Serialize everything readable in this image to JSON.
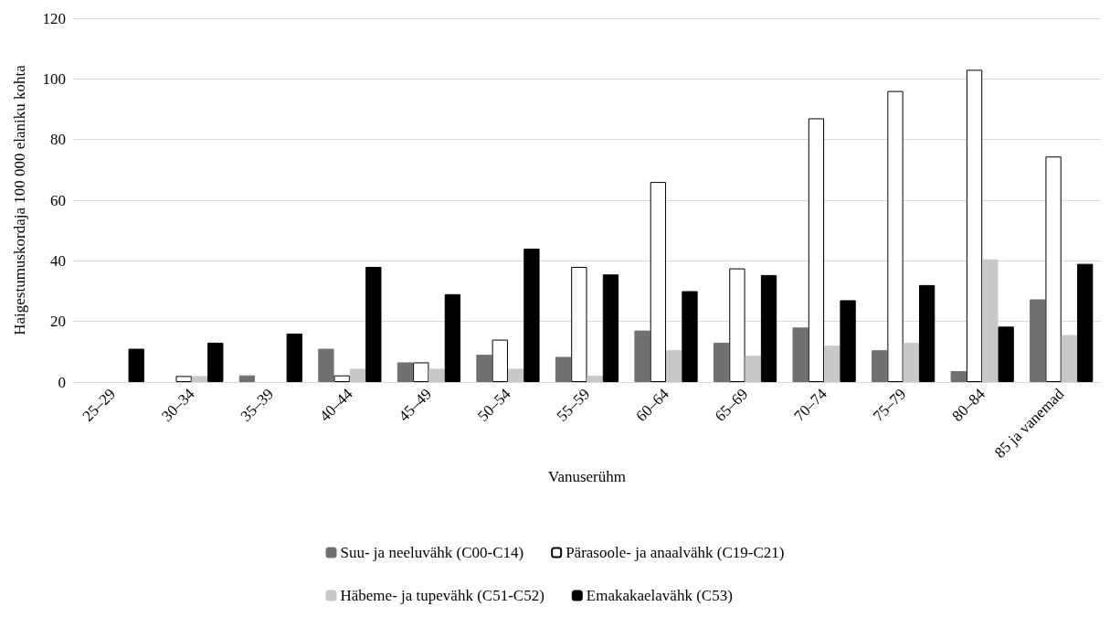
{
  "chart_data": {
    "type": "bar",
    "xlabel": "Vanuserühm",
    "ylabel": "Haigestumuskordaja 100 000 elaniku kohta",
    "categories": [
      "25–29",
      "30–34",
      "35–39",
      "40–44",
      "45–49",
      "50–54",
      "55–59",
      "60–64",
      "65–69",
      "70–74",
      "75–79",
      "80–84",
      "85 ja vanemad"
    ],
    "series": [
      {
        "name": "Suu- ja neeluvähk (C00-C14)",
        "color": "#707070",
        "values": [
          null,
          null,
          2.2,
          11,
          6.5,
          9,
          8.3,
          17,
          13,
          18,
          10.5,
          3.6,
          27.3
        ]
      },
      {
        "name": "Pärasoole- ja anaalvähk (C19-C21)",
        "color": "#ffffff",
        "values": [
          null,
          2,
          null,
          2.2,
          6.5,
          14,
          38,
          66,
          37.5,
          87,
          96,
          103,
          74.4
        ]
      },
      {
        "name": "Häbeme- ja tupevähk (C51-C52)",
        "color": "#c8c8c8",
        "values": [
          null,
          2,
          null,
          4.4,
          4.4,
          4.4,
          2.1,
          10.5,
          8.7,
          12,
          13,
          40.5,
          15.5
        ]
      },
      {
        "name": "Emakakaelavähk (C53)",
        "color": "#000000",
        "values": [
          11,
          13,
          16,
          38,
          29,
          44,
          35.5,
          30,
          35.3,
          27,
          32,
          18.3,
          39
        ]
      }
    ],
    "ylim": [
      0,
      120
    ],
    "yticks": [
      0,
      20,
      40,
      60,
      80,
      100,
      120
    ],
    "grid": "y",
    "legend": "bottom"
  }
}
